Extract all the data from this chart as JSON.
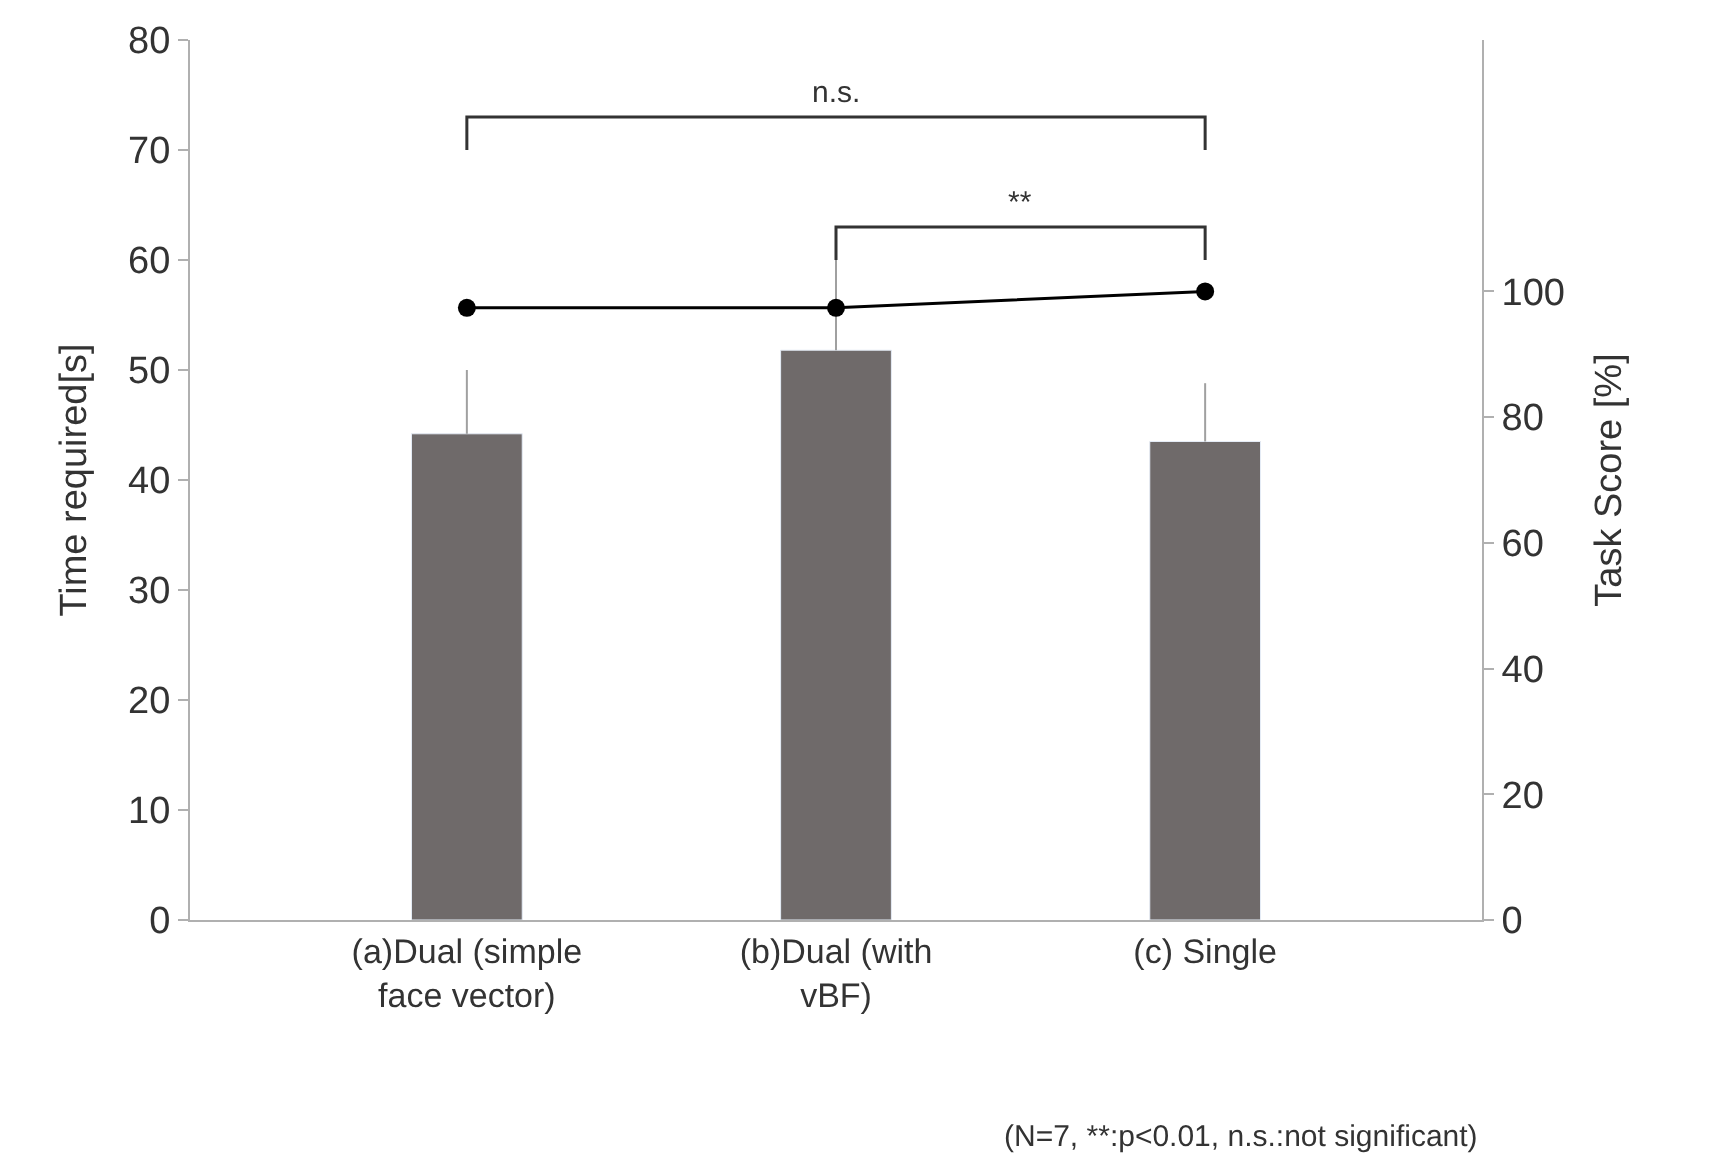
{
  "chart_data": {
    "type": "bar",
    "categories": [
      "(a)Dual (simple face vector)",
      "(b)Dual (with vBF)",
      "(c) Single"
    ],
    "ylabel": "Time required[s]",
    "y2label": "Task Score [%]",
    "series": [
      {
        "color": "#6f6a6a",
        "values": [
          44.2,
          51.8,
          43.5
        ],
        "errors": [
          [
            44.2,
            50
          ],
          [
            51.8,
            61.8
          ],
          [
            43.5,
            48.8
          ]
        ]
      },
      {
        "type": "line",
        "axis": "y2",
        "color": "#000000",
        "values": [
          97.4,
          97.4,
          100
        ]
      }
    ],
    "ylim": [
      0,
      80
    ],
    "yticks": [
      0,
      10,
      20,
      30,
      40,
      50,
      60,
      70,
      80
    ],
    "y2lim": [
      0,
      140
    ],
    "y2ticks": [
      0,
      20,
      40,
      60,
      80,
      100
    ],
    "annotations": [
      "n.s.",
      "**",
      "(N=7, **:p<0.01, n.s.:not significant)"
    ],
    "legend": false,
    "marker": "circle",
    "line_style": "solid"
  }
}
